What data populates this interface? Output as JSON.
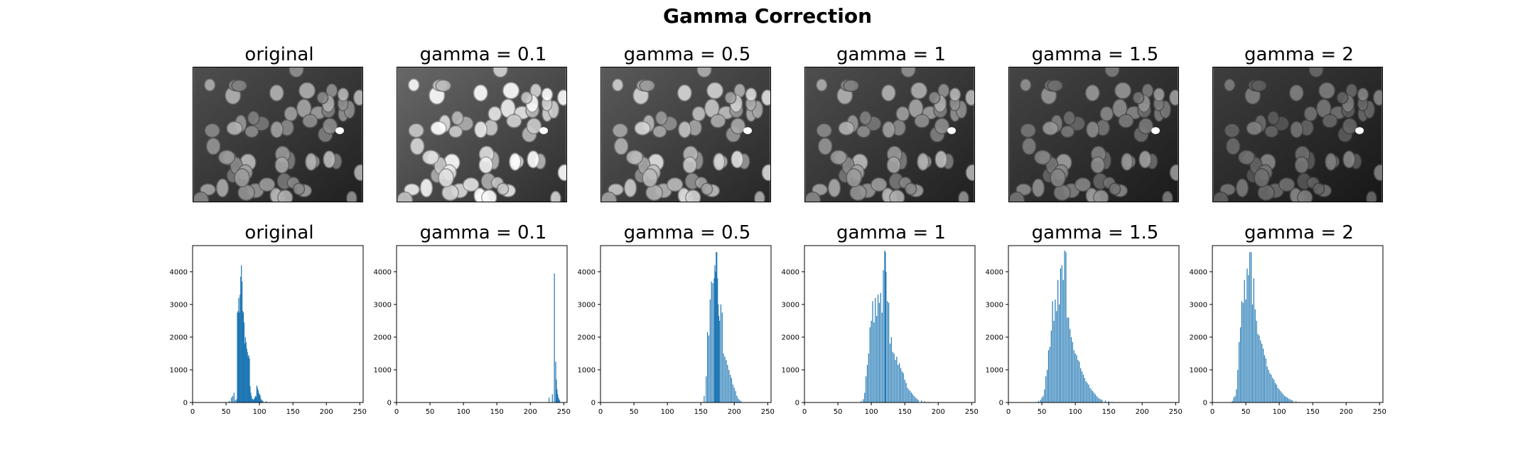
{
  "figure": {
    "title": "Gamma Correction"
  },
  "image_row": {
    "titles": [
      "original",
      "gamma = 0.1",
      "gamma = 0.5",
      "gamma = 1",
      "gamma = 1.5",
      "gamma = 2"
    ],
    "brightness": [
      1.0,
      1.45,
      1.2,
      1.0,
      0.85,
      0.72
    ]
  },
  "colors": {
    "bar": "#1f77b4",
    "axes": "#000000",
    "image_background": "#3a3a3a"
  },
  "chart_data": [
    {
      "type": "bar",
      "title": "original",
      "xlim": [
        0,
        255
      ],
      "ylim": [
        0,
        4800
      ],
      "xticks": [
        0,
        50,
        100,
        150,
        200,
        250
      ],
      "yticks": [
        0,
        1000,
        2000,
        3000,
        4000
      ],
      "x": [
        55,
        58,
        60,
        62,
        64,
        66,
        67,
        68,
        69,
        70,
        71,
        72,
        73,
        74,
        75,
        76,
        77,
        78,
        79,
        80,
        81,
        82,
        83,
        84,
        85,
        86,
        87,
        88,
        89,
        90,
        91,
        92,
        93,
        94,
        95,
        96,
        97,
        98,
        99,
        100,
        101,
        102,
        103,
        104,
        105,
        110
      ],
      "values": [
        50,
        150,
        200,
        300,
        80,
        100,
        2750,
        2800,
        3200,
        2750,
        3300,
        3850,
        4200,
        3700,
        2800,
        2750,
        2450,
        1800,
        2000,
        1850,
        1650,
        1550,
        1400,
        1450,
        1350,
        500,
        300,
        200,
        100,
        120,
        80,
        100,
        150,
        200,
        180,
        520,
        450,
        380,
        300,
        250,
        220,
        120,
        80,
        50,
        60,
        40
      ]
    },
    {
      "type": "bar",
      "title": "gamma = 0.1",
      "xlim": [
        0,
        255
      ],
      "ylim": [
        0,
        4800
      ],
      "xticks": [
        0,
        50,
        100,
        150,
        200,
        250
      ],
      "yticks": [
        0,
        1000,
        2000,
        3000,
        4000
      ],
      "x": [
        228,
        233,
        236,
        238,
        239,
        240,
        241,
        242,
        243,
        244
      ],
      "values": [
        150,
        250,
        3950,
        1250,
        700,
        400,
        250,
        150,
        100,
        60
      ]
    },
    {
      "type": "bar",
      "title": "gamma = 0.5",
      "xlim": [
        0,
        255
      ],
      "ylim": [
        0,
        4800
      ],
      "xticks": [
        0,
        50,
        100,
        150,
        200,
        250
      ],
      "yticks": [
        0,
        1000,
        2000,
        3000,
        4000
      ],
      "x": [
        155,
        158,
        160,
        162,
        164,
        166,
        168,
        170,
        171,
        172,
        173,
        174,
        175,
        176,
        177,
        178,
        180,
        182,
        184,
        186,
        188,
        190,
        192,
        194,
        196,
        198,
        200,
        202,
        204,
        206,
        208,
        210
      ],
      "values": [
        200,
        800,
        2150,
        2050,
        3150,
        3700,
        3650,
        3800,
        4200,
        4000,
        4600,
        4600,
        3800,
        3000,
        2650,
        2500,
        3000,
        2750,
        1500,
        1400,
        1300,
        1150,
        1000,
        850,
        750,
        550,
        450,
        350,
        200,
        120,
        80,
        40
      ]
    },
    {
      "type": "bar",
      "title": "gamma = 1",
      "xlim": [
        0,
        255
      ],
      "ylim": [
        0,
        4800
      ],
      "xticks": [
        0,
        50,
        100,
        150,
        200,
        250
      ],
      "yticks": [
        0,
        1000,
        2000,
        3000,
        4000
      ],
      "x": [
        85,
        88,
        90,
        92,
        94,
        96,
        98,
        100,
        102,
        104,
        106,
        108,
        110,
        112,
        114,
        116,
        118,
        120,
        121,
        122,
        124,
        126,
        128,
        130,
        132,
        134,
        136,
        138,
        140,
        142,
        144,
        146,
        148,
        150,
        152,
        154,
        156,
        158,
        160,
        162,
        164,
        166,
        168,
        170,
        175,
        180,
        185
      ],
      "values": [
        50,
        100,
        300,
        800,
        1150,
        1500,
        2300,
        2500,
        3100,
        2450,
        3200,
        2650,
        3300,
        3050,
        3350,
        2750,
        4050,
        4650,
        4600,
        4000,
        3100,
        3050,
        1800,
        2000,
        1550,
        1500,
        1300,
        1400,
        1150,
        1200,
        1050,
        950,
        900,
        700,
        600,
        450,
        400,
        350,
        300,
        250,
        200,
        150,
        120,
        80,
        60,
        40,
        20
      ]
    },
    {
      "type": "bar",
      "title": "gamma = 1.5",
      "xlim": [
        0,
        255
      ],
      "ylim": [
        0,
        4800
      ],
      "xticks": [
        0,
        50,
        100,
        150,
        200,
        250
      ],
      "yticks": [
        0,
        1000,
        2000,
        3000,
        4000
      ],
      "x": [
        45,
        48,
        50,
        52,
        54,
        56,
        58,
        60,
        62,
        64,
        66,
        68,
        70,
        72,
        74,
        76,
        78,
        80,
        82,
        84,
        86,
        88,
        90,
        92,
        94,
        96,
        98,
        100,
        102,
        104,
        106,
        108,
        110,
        112,
        114,
        116,
        118,
        120,
        122,
        124,
        126,
        128,
        130,
        132,
        134,
        136,
        138,
        140,
        145,
        150,
        155
      ],
      "values": [
        50,
        80,
        150,
        200,
        400,
        800,
        1000,
        1600,
        1700,
        2200,
        3100,
        2500,
        3150,
        2800,
        3750,
        3000,
        4100,
        4200,
        3750,
        4650,
        4600,
        2600,
        2600,
        2250,
        2000,
        1850,
        1600,
        1500,
        1450,
        1300,
        1250,
        1050,
        950,
        850,
        750,
        650,
        600,
        550,
        450,
        400,
        350,
        300,
        250,
        200,
        150,
        120,
        100,
        80,
        60,
        40,
        20
      ]
    },
    {
      "type": "bar",
      "title": "gamma = 2",
      "xlim": [
        0,
        255
      ],
      "ylim": [
        0,
        4800
      ],
      "xticks": [
        0,
        50,
        100,
        150,
        200,
        250
      ],
      "yticks": [
        0,
        1000,
        2000,
        3000,
        4000
      ],
      "x": [
        30,
        32,
        34,
        36,
        38,
        40,
        42,
        44,
        46,
        48,
        50,
        52,
        54,
        56,
        58,
        60,
        62,
        64,
        66,
        68,
        70,
        72,
        74,
        76,
        78,
        80,
        82,
        84,
        86,
        88,
        90,
        92,
        94,
        96,
        98,
        100,
        102,
        104,
        106,
        108,
        110,
        112,
        114,
        116,
        118,
        120,
        125,
        130
      ],
      "values": [
        50,
        150,
        200,
        400,
        1000,
        1850,
        2300,
        3100,
        3050,
        3750,
        3150,
        4100,
        3900,
        4600,
        4600,
        3000,
        3800,
        2850,
        2500,
        2100,
        2050,
        1900,
        1800,
        1650,
        1450,
        1350,
        1100,
        1000,
        900,
        850,
        750,
        700,
        600,
        550,
        450,
        400,
        350,
        300,
        250,
        200,
        180,
        150,
        120,
        100,
        80,
        60,
        40,
        20
      ]
    }
  ]
}
